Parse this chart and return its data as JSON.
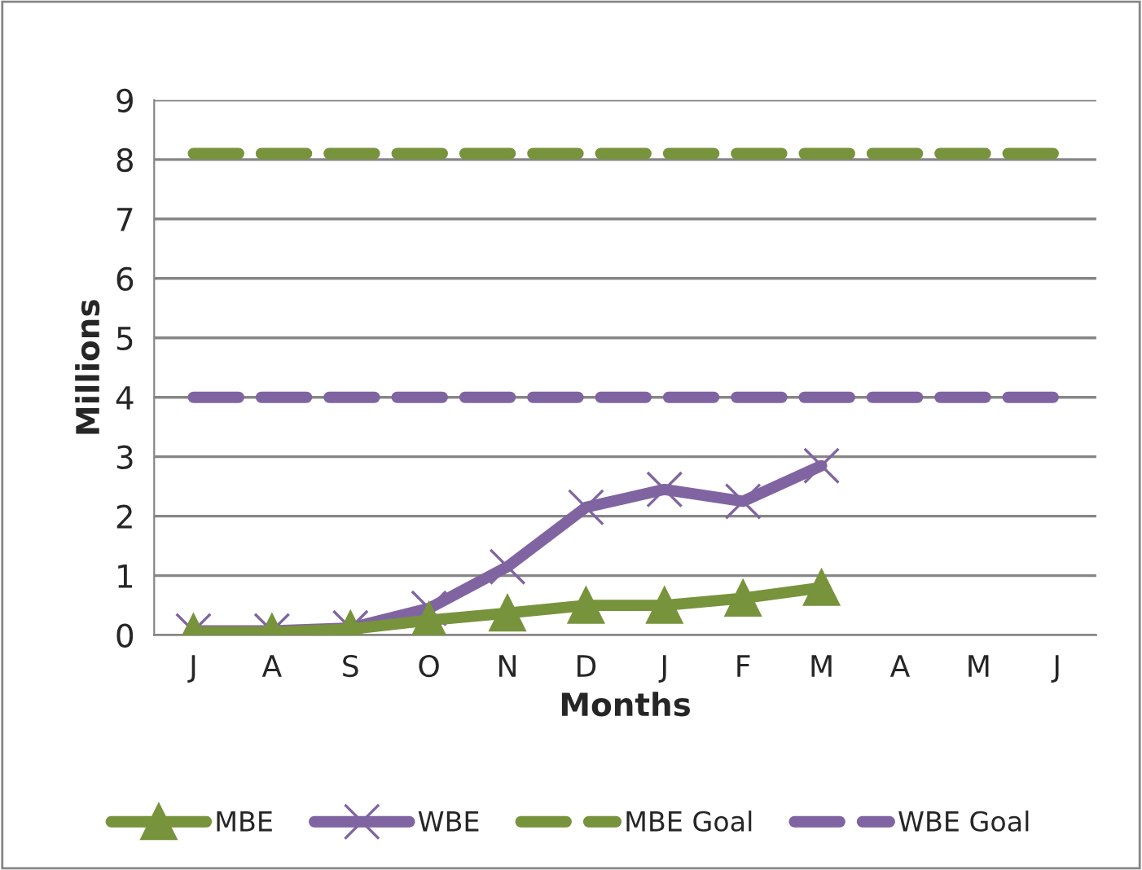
{
  "chart_data": {
    "type": "line",
    "xlabel": "Months",
    "ylabel": "Millions",
    "categories": [
      "J",
      "A",
      "S",
      "O",
      "N",
      "D",
      "J",
      "F",
      "M",
      "A",
      "M",
      "J"
    ],
    "series": [
      {
        "name": "MBE",
        "color": "#77933c",
        "marker": "triangle",
        "line_style": "solid",
        "values": [
          0.05,
          0.05,
          0.1,
          0.25,
          0.37,
          0.5,
          0.5,
          0.62,
          0.8,
          null,
          null,
          null
        ]
      },
      {
        "name": "WBE",
        "color": "#8064a2",
        "marker": "cross",
        "line_style": "solid",
        "values": [
          0.07,
          0.07,
          0.12,
          0.45,
          1.15,
          2.15,
          2.45,
          2.25,
          2.85,
          null,
          null,
          null
        ]
      },
      {
        "name": "MBE Goal",
        "color": "#77933c",
        "marker": "none",
        "line_style": "dashed",
        "values": [
          8.1,
          8.1,
          8.1,
          8.1,
          8.1,
          8.1,
          8.1,
          8.1,
          8.1,
          8.1,
          8.1,
          8.1
        ]
      },
      {
        "name": "WBE Goal",
        "color": "#8064a2",
        "marker": "none",
        "line_style": "dashed",
        "values": [
          4.0,
          4.0,
          4.0,
          4.0,
          4.0,
          4.0,
          4.0,
          4.0,
          4.0,
          4.0,
          4.0,
          4.0
        ]
      }
    ],
    "ylim": [
      0,
      9
    ],
    "yticks": [
      0,
      1,
      2,
      3,
      4,
      5,
      6,
      7,
      8,
      9
    ],
    "grid": "y",
    "legend": "bottom"
  }
}
